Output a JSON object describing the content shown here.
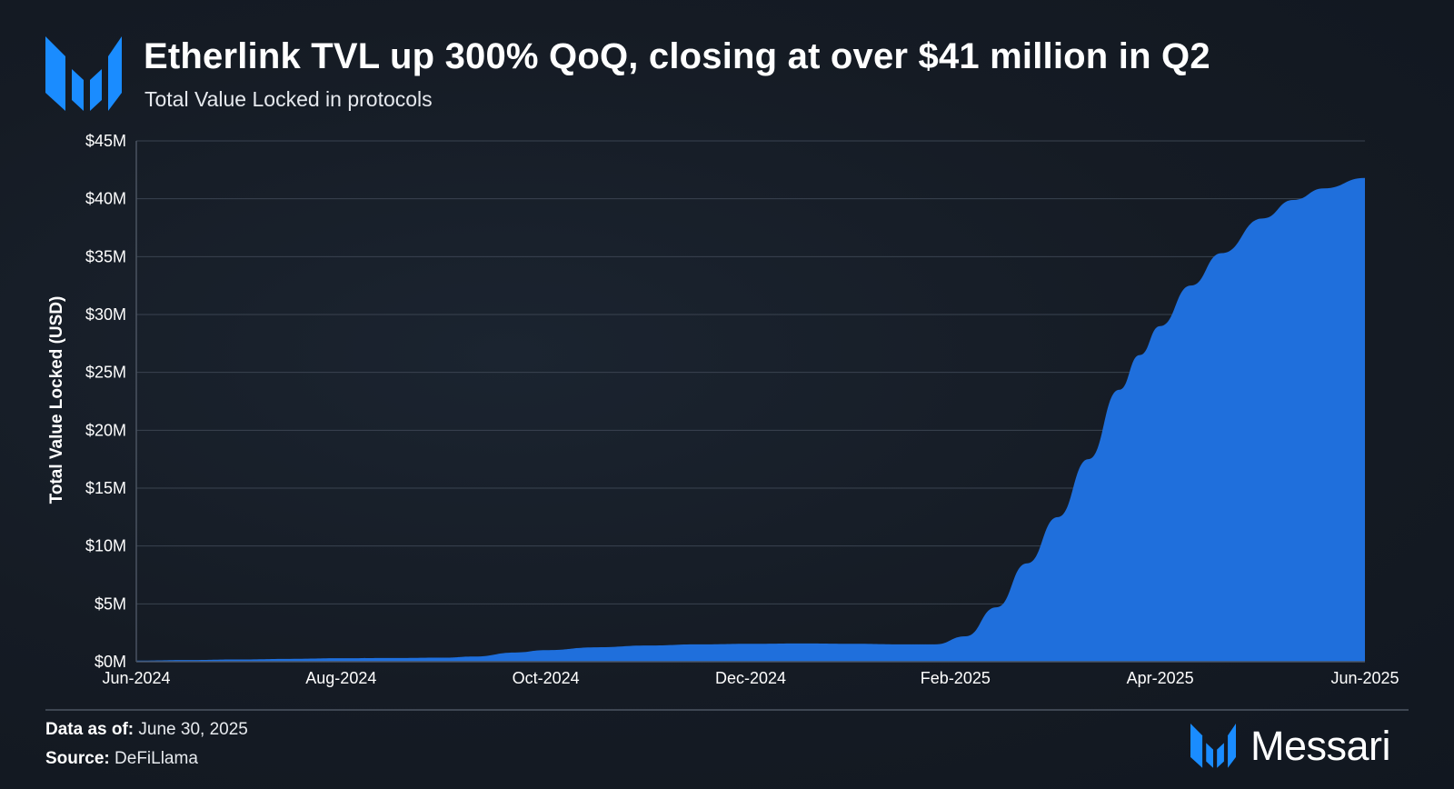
{
  "header": {
    "title": "Etherlink TVL up 300% QoQ, closing at over $41 million in Q2",
    "subtitle": "Total Value Locked in protocols",
    "logo_icon": "messari-logo-icon"
  },
  "footer": {
    "data_as_of_label": "Data as of:",
    "data_as_of_value": "June 30, 2025",
    "source_label": "Source:",
    "source_value": "DeFiLlama",
    "brand_name": "Messari",
    "brand_icon": "messari-logo-icon"
  },
  "colors": {
    "area_fill": "#1f6fdc",
    "accent_logo": "#1a8cff",
    "gridline": "#3a4350",
    "text": "#ffffff"
  },
  "chart_data": {
    "type": "area",
    "title": "Etherlink TVL up 300% QoQ, closing at over $41 million in Q2",
    "subtitle": "Total Value Locked in protocols",
    "xlabel": "",
    "ylabel": "Total Value Locked (USD)",
    "xlim": [
      0,
      12
    ],
    "ylim": [
      0,
      45
    ],
    "y_unit": "$M",
    "grid": true,
    "x_ticks": [
      {
        "x": 0,
        "label": "Jun-2024"
      },
      {
        "x": 2,
        "label": "Aug-2024"
      },
      {
        "x": 4,
        "label": "Oct-2024"
      },
      {
        "x": 6,
        "label": "Dec-2024"
      },
      {
        "x": 8,
        "label": "Feb-2025"
      },
      {
        "x": 10,
        "label": "Apr-2025"
      },
      {
        "x": 12,
        "label": "Jun-2025"
      }
    ],
    "y_ticks": [
      {
        "v": 0,
        "label": "$0M"
      },
      {
        "v": 5,
        "label": "$5M"
      },
      {
        "v": 10,
        "label": "$10M"
      },
      {
        "v": 15,
        "label": "$15M"
      },
      {
        "v": 20,
        "label": "$20M"
      },
      {
        "v": 25,
        "label": "$25M"
      },
      {
        "v": 30,
        "label": "$30M"
      },
      {
        "v": 35,
        "label": "$35M"
      },
      {
        "v": 40,
        "label": "$40M"
      },
      {
        "v": 45,
        "label": "$45M"
      }
    ],
    "series": [
      {
        "name": "Etherlink TVL",
        "x": [
          0,
          0.5,
          1,
          1.5,
          2,
          2.5,
          3,
          3.3,
          3.7,
          4,
          4.5,
          5,
          5.5,
          6,
          6.5,
          7,
          7.5,
          7.8,
          8.1,
          8.4,
          8.7,
          9,
          9.3,
          9.6,
          9.8,
          10,
          10.3,
          10.6,
          11,
          11.3,
          11.6,
          12
        ],
        "values": [
          0.1,
          0.15,
          0.2,
          0.25,
          0.3,
          0.32,
          0.35,
          0.45,
          0.8,
          1.0,
          1.25,
          1.4,
          1.5,
          1.55,
          1.58,
          1.55,
          1.5,
          1.5,
          2.2,
          4.7,
          8.5,
          12.5,
          17.5,
          23.5,
          26.5,
          29.0,
          32.5,
          35.3,
          38.3,
          39.9,
          40.9,
          41.8
        ]
      }
    ]
  }
}
